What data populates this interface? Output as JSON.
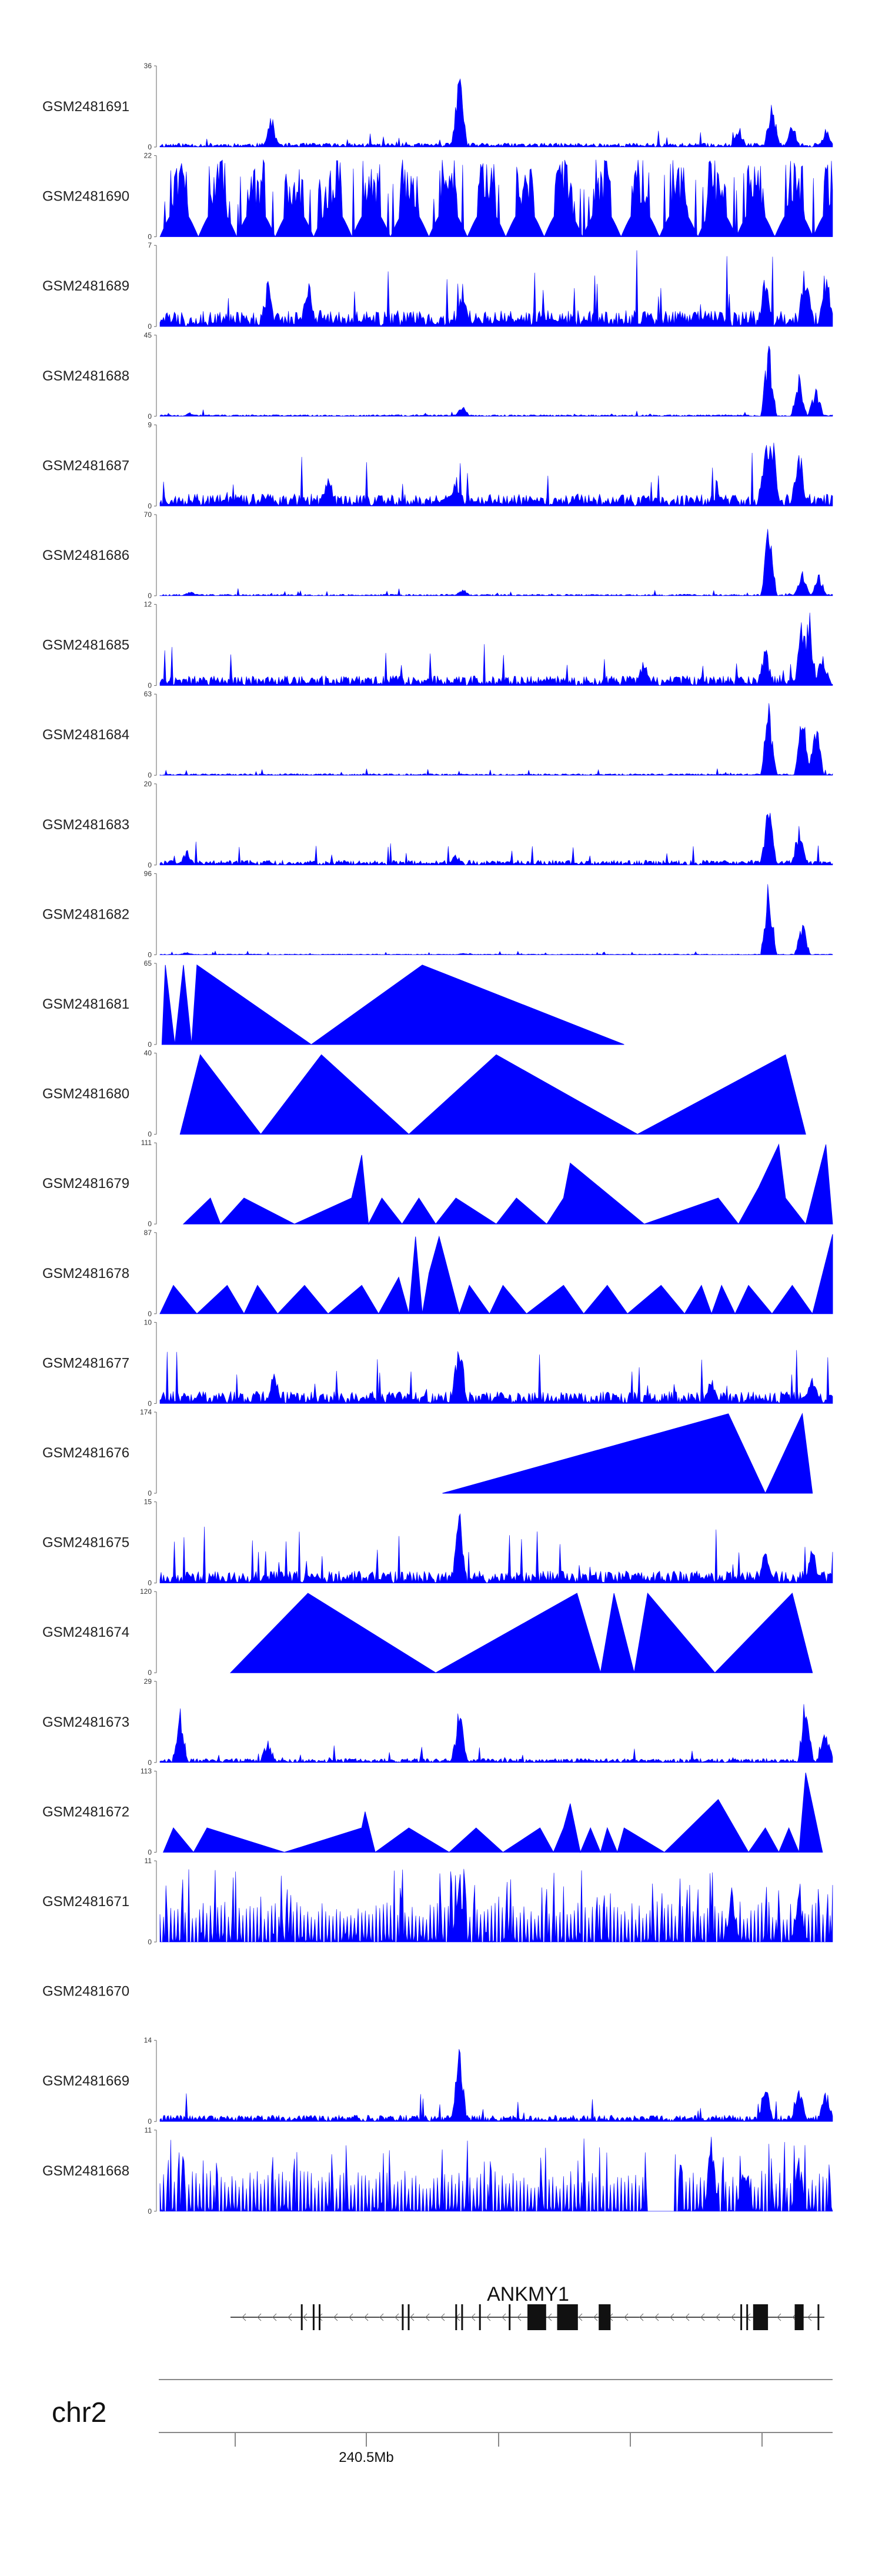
{
  "chart_data": {
    "type": "area",
    "title": "",
    "color": "#0000ff",
    "tracks": [
      {
        "id": "GSM2481691",
        "ymax": "36",
        "style": "dense",
        "seed": 11,
        "base": 0.05,
        "peaks": [
          {
            "x": 0.165,
            "h": 0.45
          },
          {
            "x": 0.445,
            "h": 1.0
          },
          {
            "x": 0.86,
            "h": 0.3
          },
          {
            "x": 0.91,
            "h": 0.65
          },
          {
            "x": 0.94,
            "h": 0.35
          },
          {
            "x": 0.99,
            "h": 0.25
          }
        ]
      },
      {
        "id": "GSM2481690",
        "ymax": "22",
        "style": "mixed",
        "seed": 22,
        "base": 0.35,
        "peaks": [
          {
            "x": 0.03,
            "h": 1.0
          },
          {
            "x": 0.26,
            "h": 0.5
          },
          {
            "x": 0.65,
            "h": 0.95
          },
          {
            "x": 0.82,
            "h": 0.98
          },
          {
            "x": 0.95,
            "h": 0.9
          }
        ]
      },
      {
        "id": "GSM2481689",
        "ymax": "7",
        "style": "dense",
        "seed": 33,
        "base": 0.2,
        "peaks": [
          {
            "x": 0.16,
            "h": 0.6
          },
          {
            "x": 0.22,
            "h": 0.7
          },
          {
            "x": 0.45,
            "h": 0.55
          },
          {
            "x": 0.9,
            "h": 0.75
          },
          {
            "x": 0.96,
            "h": 0.95
          },
          {
            "x": 0.99,
            "h": 0.85
          }
        ]
      },
      {
        "id": "GSM2481688",
        "ymax": "45",
        "style": "dense",
        "seed": 44,
        "base": 0.02,
        "peaks": [
          {
            "x": 0.045,
            "h": 0.05
          },
          {
            "x": 0.45,
            "h": 0.14
          },
          {
            "x": 0.905,
            "h": 1.0
          },
          {
            "x": 0.95,
            "h": 0.55
          },
          {
            "x": 0.975,
            "h": 0.4
          }
        ]
      },
      {
        "id": "GSM2481687",
        "ymax": "9",
        "style": "dense",
        "seed": 55,
        "base": 0.15,
        "peaks": [
          {
            "x": 0.25,
            "h": 0.5
          },
          {
            "x": 0.44,
            "h": 0.4
          },
          {
            "x": 0.9,
            "h": 0.9
          },
          {
            "x": 0.91,
            "h": 1.0
          },
          {
            "x": 0.95,
            "h": 0.85
          }
        ]
      },
      {
        "id": "GSM2481686",
        "ymax": "70",
        "style": "dense",
        "seed": 66,
        "base": 0.02,
        "peaks": [
          {
            "x": 0.045,
            "h": 0.06
          },
          {
            "x": 0.45,
            "h": 0.1
          },
          {
            "x": 0.905,
            "h": 1.0
          },
          {
            "x": 0.955,
            "h": 0.35
          },
          {
            "x": 0.98,
            "h": 0.3
          }
        ]
      },
      {
        "id": "GSM2481685",
        "ymax": "12",
        "style": "dense",
        "seed": 77,
        "base": 0.12,
        "peaks": [
          {
            "x": 0.72,
            "h": 0.4
          },
          {
            "x": 0.9,
            "h": 0.55
          },
          {
            "x": 0.955,
            "h": 0.95
          },
          {
            "x": 0.965,
            "h": 1.0
          },
          {
            "x": 0.985,
            "h": 0.5
          }
        ]
      },
      {
        "id": "GSM2481684",
        "ymax": "63",
        "style": "dense",
        "seed": 88,
        "base": 0.02,
        "peaks": [
          {
            "x": 0.905,
            "h": 0.95
          },
          {
            "x": 0.955,
            "h": 0.9
          },
          {
            "x": 0.975,
            "h": 0.75
          }
        ]
      },
      {
        "id": "GSM2481683",
        "ymax": "20",
        "style": "dense",
        "seed": 99,
        "base": 0.06,
        "peaks": [
          {
            "x": 0.04,
            "h": 0.2
          },
          {
            "x": 0.44,
            "h": 0.15
          },
          {
            "x": 0.905,
            "h": 1.0
          },
          {
            "x": 0.95,
            "h": 0.5
          }
        ]
      },
      {
        "id": "GSM2481682",
        "ymax": "96",
        "style": "dense",
        "seed": 111,
        "base": 0.01,
        "peaks": [
          {
            "x": 0.04,
            "h": 0.04
          },
          {
            "x": 0.45,
            "h": 0.03
          },
          {
            "x": 0.905,
            "h": 1.0
          },
          {
            "x": 0.955,
            "h": 0.45
          }
        ]
      },
      {
        "id": "GSM2481681",
        "ymax": "65",
        "style": "tri",
        "pts": [
          [
            0.003,
            0
          ],
          [
            0.008,
            0.98
          ],
          [
            0.022,
            0
          ],
          [
            0.035,
            0.98
          ],
          [
            0.047,
            0
          ],
          [
            0.055,
            0.98
          ],
          [
            0.225,
            0
          ],
          [
            0.39,
            0.98
          ],
          [
            0.69,
            0
          ]
        ]
      },
      {
        "id": "GSM2481680",
        "ymax": "40",
        "style": "tri",
        "pts": [
          [
            0.03,
            0
          ],
          [
            0.06,
            0.98
          ],
          [
            0.15,
            0
          ],
          [
            0.24,
            0.98
          ],
          [
            0.37,
            0
          ],
          [
            0.5,
            0.98
          ],
          [
            0.71,
            0
          ],
          [
            0.93,
            0.98
          ],
          [
            0.96,
            0
          ]
        ]
      },
      {
        "id": "GSM2481679",
        "ymax": "111",
        "style": "tri",
        "pts": [
          [
            0.035,
            0
          ],
          [
            0.075,
            0.32
          ],
          [
            0.09,
            0
          ],
          [
            0.125,
            0.32
          ],
          [
            0.2,
            0
          ],
          [
            0.285,
            0.32
          ],
          [
            0.3,
            0.85
          ],
          [
            0.31,
            0
          ],
          [
            0.33,
            0.32
          ],
          [
            0.36,
            0
          ],
          [
            0.385,
            0.32
          ],
          [
            0.41,
            0
          ],
          [
            0.44,
            0.32
          ],
          [
            0.5,
            0
          ],
          [
            0.53,
            0.32
          ],
          [
            0.575,
            0
          ],
          [
            0.6,
            0.32
          ],
          [
            0.61,
            0.75
          ],
          [
            0.72,
            0
          ],
          [
            0.83,
            0.32
          ],
          [
            0.86,
            0
          ],
          [
            0.89,
            0.45
          ],
          [
            0.92,
            0.98
          ],
          [
            0.93,
            0.32
          ],
          [
            0.96,
            0
          ],
          [
            0.99,
            0.98
          ],
          [
            1.0,
            0
          ]
        ]
      },
      {
        "id": "GSM2481678",
        "ymax": "87",
        "style": "tri",
        "pts": [
          [
            0.0,
            0
          ],
          [
            0.02,
            0.35
          ],
          [
            0.055,
            0
          ],
          [
            0.1,
            0.35
          ],
          [
            0.125,
            0
          ],
          [
            0.145,
            0.35
          ],
          [
            0.175,
            0
          ],
          [
            0.215,
            0.35
          ],
          [
            0.25,
            0
          ],
          [
            0.3,
            0.35
          ],
          [
            0.325,
            0
          ],
          [
            0.355,
            0.45
          ],
          [
            0.37,
            0
          ],
          [
            0.38,
            0.95
          ],
          [
            0.39,
            0
          ],
          [
            0.4,
            0.5
          ],
          [
            0.415,
            0.95
          ],
          [
            0.445,
            0
          ],
          [
            0.46,
            0.35
          ],
          [
            0.49,
            0
          ],
          [
            0.51,
            0.35
          ],
          [
            0.545,
            0
          ],
          [
            0.6,
            0.35
          ],
          [
            0.63,
            0
          ],
          [
            0.665,
            0.35
          ],
          [
            0.695,
            0
          ],
          [
            0.745,
            0.35
          ],
          [
            0.78,
            0
          ],
          [
            0.805,
            0.35
          ],
          [
            0.82,
            0
          ],
          [
            0.835,
            0.35
          ],
          [
            0.855,
            0
          ],
          [
            0.875,
            0.35
          ],
          [
            0.91,
            0
          ],
          [
            0.94,
            0.35
          ],
          [
            0.97,
            0
          ],
          [
            1.0,
            0.98
          ],
          [
            1.0,
            0
          ]
        ]
      },
      {
        "id": "GSM2481677",
        "ymax": "10",
        "style": "dense",
        "seed": 122,
        "base": 0.15,
        "peaks": [
          {
            "x": 0.17,
            "h": 0.45
          },
          {
            "x": 0.445,
            "h": 1.0
          },
          {
            "x": 0.82,
            "h": 0.4
          },
          {
            "x": 0.97,
            "h": 0.4
          }
        ]
      },
      {
        "id": "GSM2481676",
        "ymax": "174",
        "style": "tri",
        "pts": [
          [
            0.42,
            0
          ],
          [
            0.845,
            0.98
          ],
          [
            0.9,
            0
          ],
          [
            0.955,
            0.98
          ],
          [
            0.97,
            0
          ]
        ]
      },
      {
        "id": "GSM2481675",
        "ymax": "15",
        "style": "dense",
        "seed": 133,
        "base": 0.15,
        "peaks": [
          {
            "x": 0.445,
            "h": 1.0
          },
          {
            "x": 0.9,
            "h": 0.45
          },
          {
            "x": 0.97,
            "h": 0.5
          }
        ]
      },
      {
        "id": "GSM2481674",
        "ymax": "120",
        "style": "tri",
        "pts": [
          [
            0.105,
            0
          ],
          [
            0.22,
            0.98
          ],
          [
            0.41,
            0
          ],
          [
            0.62,
            0.98
          ],
          [
            0.655,
            0
          ],
          [
            0.675,
            0.98
          ],
          [
            0.705,
            0
          ],
          [
            0.725,
            0.98
          ],
          [
            0.825,
            0
          ],
          [
            0.94,
            0.98
          ],
          [
            0.97,
            0
          ]
        ]
      },
      {
        "id": "GSM2481673",
        "ymax": "29",
        "style": "dense",
        "seed": 144,
        "base": 0.05,
        "peaks": [
          {
            "x": 0.03,
            "h": 0.7
          },
          {
            "x": 0.16,
            "h": 0.3
          },
          {
            "x": 0.445,
            "h": 0.75
          },
          {
            "x": 0.96,
            "h": 0.95
          },
          {
            "x": 0.99,
            "h": 0.5
          }
        ]
      },
      {
        "id": "GSM2481672",
        "ymax": "113",
        "style": "tri",
        "pts": [
          [
            0.005,
            0
          ],
          [
            0.02,
            0.3
          ],
          [
            0.05,
            0
          ],
          [
            0.07,
            0.3
          ],
          [
            0.185,
            0
          ],
          [
            0.3,
            0.3
          ],
          [
            0.305,
            0.5
          ],
          [
            0.32,
            0
          ],
          [
            0.37,
            0.3
          ],
          [
            0.43,
            0
          ],
          [
            0.47,
            0.3
          ],
          [
            0.51,
            0
          ],
          [
            0.565,
            0.3
          ],
          [
            0.585,
            0
          ],
          [
            0.6,
            0.3
          ],
          [
            0.61,
            0.6
          ],
          [
            0.625,
            0
          ],
          [
            0.64,
            0.3
          ],
          [
            0.655,
            0
          ],
          [
            0.665,
            0.3
          ],
          [
            0.68,
            0
          ],
          [
            0.69,
            0.3
          ],
          [
            0.75,
            0
          ],
          [
            0.83,
            0.65
          ],
          [
            0.875,
            0
          ],
          [
            0.9,
            0.3
          ],
          [
            0.92,
            0
          ],
          [
            0.935,
            0.3
          ],
          [
            0.95,
            0
          ],
          [
            0.96,
            0.98
          ],
          [
            0.985,
            0
          ]
        ]
      },
      {
        "id": "GSM2481671",
        "ymax": "11",
        "style": "spiky",
        "seed": 155,
        "base": 0.5,
        "peaks": [
          {
            "x": 0.445,
            "h": 1.0
          },
          {
            "x": 0.85,
            "h": 0.7
          },
          {
            "x": 0.95,
            "h": 0.7
          }
        ]
      },
      {
        "id": "GSM2481670",
        "ymax": "",
        "style": "empty"
      },
      {
        "id": "GSM2481669",
        "ymax": "14",
        "style": "dense",
        "seed": 166,
        "base": 0.08,
        "peaks": [
          {
            "x": 0.445,
            "h": 1.0
          },
          {
            "x": 0.9,
            "h": 0.55
          },
          {
            "x": 0.95,
            "h": 0.6
          },
          {
            "x": 0.99,
            "h": 0.45
          }
        ]
      },
      {
        "id": "GSM2481668",
        "ymax": "11",
        "style": "spiky",
        "seed": 177,
        "base": 0.5,
        "peaks": [
          {
            "x": 0.82,
            "h": 1.0
          },
          {
            "x": 0.87,
            "h": 0.8
          },
          {
            "x": 0.95,
            "h": 0.75
          }
        ],
        "gaps": [
          [
            0.725,
            0.765
          ]
        ]
      }
    ],
    "gene": {
      "name": "ANKMY1",
      "strand": "-",
      "exons": [
        0.12,
        0.14,
        0.15,
        0.29,
        0.3,
        0.38,
        0.39,
        0.42,
        0.47,
        0.51,
        0.52,
        0.53,
        0.58,
        0.86,
        0.87,
        0.89,
        0.9,
        0.99
      ]
    },
    "chromosome": "chr2",
    "xaxis": {
      "tick_label": "240.5Mb"
    }
  }
}
